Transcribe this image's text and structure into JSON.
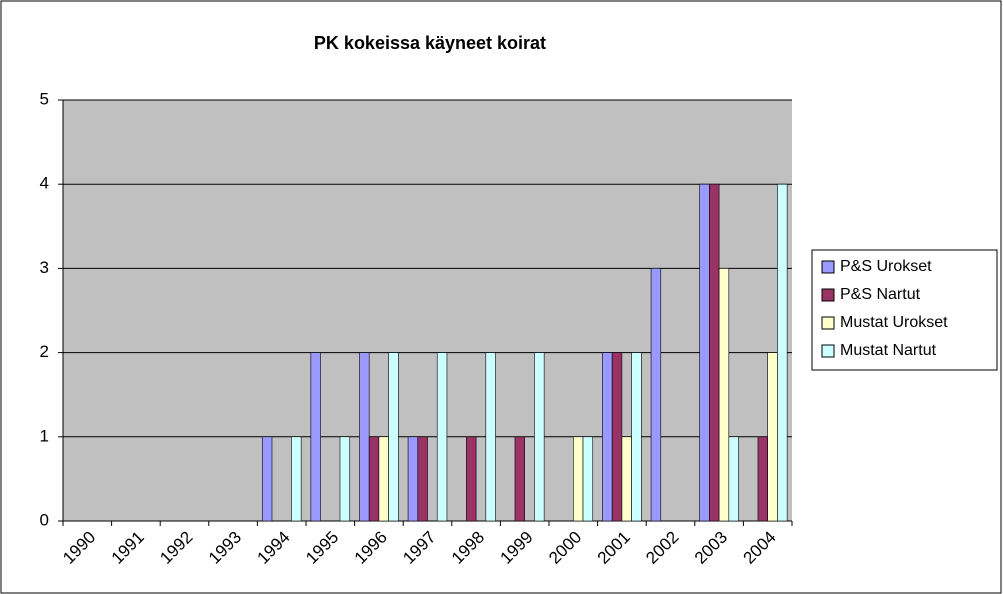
{
  "chart_data": {
    "type": "bar",
    "title": "PK kokeissa käyneet koirat",
    "categories": [
      "1990",
      "1991",
      "1992",
      "1993",
      "1994",
      "1995",
      "1996",
      "1997",
      "1998",
      "1999",
      "2000",
      "2001",
      "2002",
      "2003",
      "2004"
    ],
    "series": [
      {
        "name": "P&S Urokset",
        "color": "#9999ff",
        "values": [
          0,
          0,
          0,
          0,
          1,
          2,
          2,
          1,
          0,
          0,
          0,
          2,
          3,
          4,
          0
        ]
      },
      {
        "name": "P&S Nartut",
        "color": "#993366",
        "values": [
          0,
          0,
          0,
          0,
          0,
          0,
          1,
          1,
          1,
          1,
          0,
          2,
          0,
          4,
          1
        ]
      },
      {
        "name": "Mustat Urokset",
        "color": "#ffffcc",
        "values": [
          0,
          0,
          0,
          0,
          0,
          0,
          1,
          0,
          0,
          0,
          1,
          1,
          0,
          3,
          2
        ]
      },
      {
        "name": "Mustat Nartut",
        "color": "#ccffff",
        "values": [
          0,
          0,
          0,
          0,
          1,
          1,
          2,
          2,
          2,
          2,
          1,
          2,
          0,
          1,
          4
        ]
      }
    ],
    "ylim": [
      0,
      5
    ],
    "yticks": [
      0,
      1,
      2,
      3,
      4,
      5
    ],
    "grid": true,
    "legend": "right"
  }
}
